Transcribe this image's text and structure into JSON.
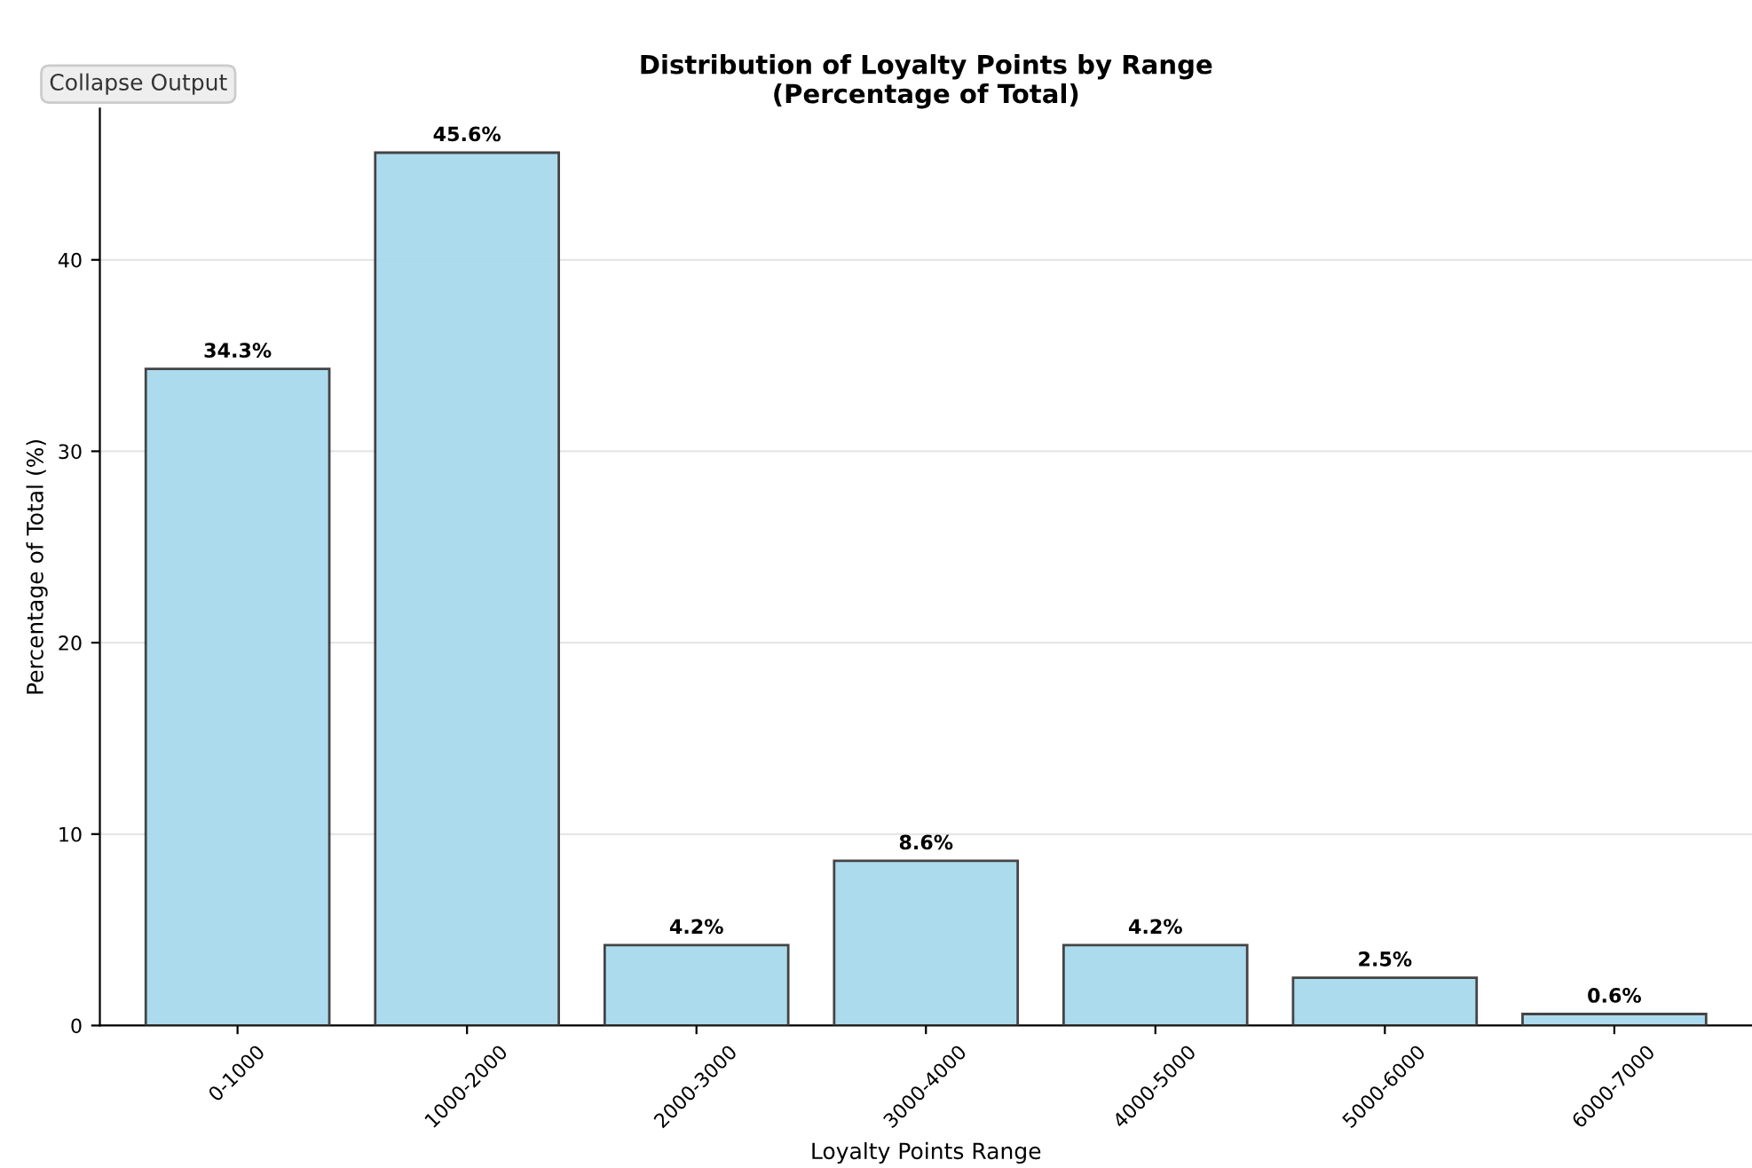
{
  "chart_data": {
    "type": "bar",
    "title": "Distribution of Loyalty Points by Range\n(Percentage of Total)",
    "xlabel": "Loyalty Points Range",
    "ylabel": "Percentage of Total (%)",
    "categories": [
      "0-1000",
      "1000-2000",
      "2000-3000",
      "3000-4000",
      "4000-5000",
      "5000-6000",
      "6000-7000"
    ],
    "values": [
      34.3,
      45.6,
      4.2,
      8.6,
      4.2,
      2.5,
      0.6
    ],
    "value_labels": [
      "34.3%",
      "45.6%",
      "4.2%",
      "8.6%",
      "4.2%",
      "2.5%",
      "0.6%"
    ],
    "color": "#a8daee",
    "ylim": [
      0,
      47.9
    ],
    "yticks": [
      0,
      10,
      20,
      30,
      40
    ],
    "grid": "y",
    "annotations": [
      "Collapse Output"
    ]
  }
}
